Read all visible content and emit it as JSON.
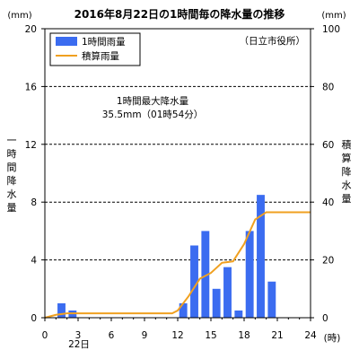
{
  "chart_data": {
    "type": "bar+line",
    "title": "2016年8月22日の1時間毎の降水量の推移",
    "station": "（日立市役所）",
    "left_unit": "(mm)",
    "right_unit": "(mm)",
    "x_unit": "(時)",
    "x_date_label": "22日",
    "left_axis_label": [
      "一",
      "時",
      "間",
      "降",
      "水",
      "量"
    ],
    "right_axis_label": [
      "積",
      "算",
      "降",
      "水",
      "量"
    ],
    "annotation": [
      "1時間最大降水量",
      "35.5mm（01時54分）"
    ],
    "xlim": [
      0,
      24
    ],
    "x_ticks": [
      0,
      3,
      6,
      9,
      12,
      15,
      18,
      21,
      24
    ],
    "y_left_lim": [
      0,
      20
    ],
    "y_left_ticks": [
      0,
      4,
      8,
      12,
      16,
      20
    ],
    "y_right_lim": [
      0,
      100
    ],
    "y_right_ticks": [
      0,
      20,
      40,
      60,
      80,
      100
    ],
    "grid": "horizontal-dashed",
    "legend_position": "top-left",
    "series": [
      {
        "name": "1時間雨量",
        "kind": "bar",
        "axis": "left",
        "color": "#3b6cf0",
        "hours": [
          1,
          2,
          12,
          13,
          14,
          15,
          16,
          17,
          18,
          19,
          20
        ],
        "values": [
          1.0,
          0.5,
          1.0,
          5.0,
          6.0,
          2.0,
          3.5,
          0.5,
          6.0,
          8.5,
          2.5
        ]
      },
      {
        "name": "積算雨量",
        "kind": "line",
        "axis": "right",
        "color": "#f0a020",
        "x": [
          0,
          1,
          2,
          11.5,
          12,
          13,
          14,
          15,
          16,
          17,
          18,
          19,
          20,
          24
        ],
        "y": [
          0,
          1.0,
          1.5,
          1.5,
          2.5,
          7.5,
          13.5,
          15.5,
          19.0,
          19.5,
          25.5,
          34.0,
          36.5,
          36.5
        ]
      }
    ]
  }
}
